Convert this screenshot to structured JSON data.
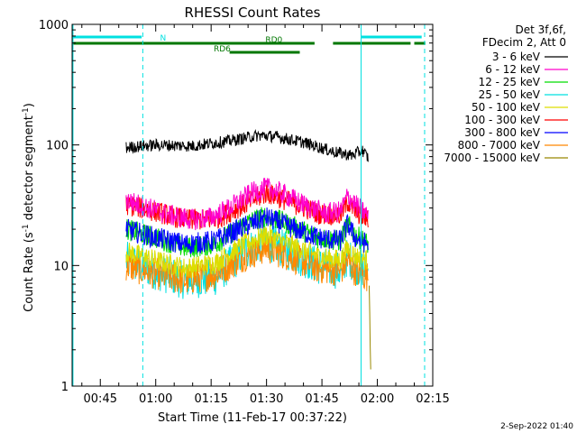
{
  "chart_data": {
    "type": "line",
    "title": "RHESSI Count Rates",
    "xlabel": "Start Time (11-Feb-17 00:37:22)",
    "ylabel_main": "Count Rate (s",
    "ylabel_sup1": "-1",
    "ylabel_mid": " detector segment",
    "ylabel_sup2": "-1",
    "ylabel_end": ")",
    "y_scale": "log",
    "ylim": [
      1,
      1000
    ],
    "xlim_minutes": [
      37.37,
      135.0
    ],
    "x_ticks": [
      {
        "minute": 45,
        "label": "00:45"
      },
      {
        "minute": 60,
        "label": "01:00"
      },
      {
        "minute": 75,
        "label": "01:15"
      },
      {
        "minute": 90,
        "label": "01:30"
      },
      {
        "minute": 105,
        "label": "01:45"
      },
      {
        "minute": 120,
        "label": "02:00"
      },
      {
        "minute": 135,
        "label": "02:15"
      }
    ],
    "y_ticks": [
      {
        "value": 1,
        "label": "1"
      },
      {
        "value": 10,
        "label": "10"
      },
      {
        "value": 100,
        "label": "100"
      },
      {
        "value": 1000,
        "label": "1000"
      }
    ],
    "legend_header": [
      "Det 3f,6f,",
      "FDecim 2, Att 0"
    ],
    "legend_position": "right",
    "series": [
      {
        "name": "3 - 6 keV",
        "color": "#000000",
        "x": [
          52,
          60,
          70,
          80,
          88,
          92,
          100,
          108,
          113,
          116,
          117.5
        ],
        "y": [
          95,
          100,
          98,
          108,
          120,
          118,
          105,
          88,
          82,
          90,
          78
        ]
      },
      {
        "name": "6 - 12 keV",
        "color": "#ff00cc",
        "x": [
          52,
          58,
          64,
          70,
          75,
          80,
          86,
          90,
          94,
          100,
          106,
          110,
          112,
          114,
          117.5
        ],
        "y": [
          35,
          30,
          26,
          24,
          25,
          30,
          40,
          44,
          40,
          32,
          27,
          28,
          38,
          32,
          26
        ]
      },
      {
        "name": "12 - 25 keV",
        "color": "#00dd00",
        "x": [
          52,
          60,
          68,
          76,
          84,
          90,
          96,
          104,
          110,
          112,
          114,
          117.5
        ],
        "y": [
          20,
          17,
          14,
          15,
          22,
          26,
          22,
          17,
          16,
          22,
          18,
          15
        ]
      },
      {
        "name": "25 - 50 keV",
        "color": "#00e0e0",
        "x": [
          52,
          60,
          68,
          76,
          84,
          90,
          96,
          104,
          110,
          112,
          114,
          117.5
        ],
        "y": [
          11,
          9,
          7.5,
          8,
          13,
          16,
          13,
          10,
          9,
          12,
          10,
          9
        ]
      },
      {
        "name": "50 - 100 keV",
        "color": "#dddd00",
        "x": [
          52,
          60,
          68,
          76,
          84,
          90,
          96,
          104,
          110,
          112,
          114,
          117.5
        ],
        "y": [
          13,
          11,
          9.5,
          10.5,
          15,
          18,
          15,
          12,
          11,
          14,
          12,
          11
        ]
      },
      {
        "name": "100 - 300 keV",
        "color": "#ff0000",
        "x": [
          52,
          60,
          68,
          76,
          84,
          90,
          96,
          104,
          110,
          112,
          114,
          117.5
        ],
        "y": [
          32,
          28,
          24,
          24,
          32,
          40,
          34,
          27,
          26,
          34,
          28,
          24
        ]
      },
      {
        "name": "300 - 800 keV",
        "color": "#0000ff",
        "x": [
          52,
          60,
          68,
          76,
          84,
          90,
          96,
          104,
          110,
          112,
          114,
          117.5
        ],
        "y": [
          20,
          17,
          15,
          16,
          21,
          25,
          21,
          17,
          16,
          22,
          17,
          15
        ]
      },
      {
        "name": "800 - 7000 keV",
        "color": "#ff8800",
        "x": [
          52,
          60,
          68,
          76,
          84,
          90,
          96,
          104,
          110,
          112,
          114,
          117.5
        ],
        "y": [
          10,
          8.5,
          7.5,
          8.5,
          12,
          14,
          12,
          9.5,
          9,
          11,
          9,
          8
        ]
      },
      {
        "name": "7000 - 15000 keV",
        "color": "#998800",
        "x": [
          117.8,
          118.2
        ],
        "y": [
          6,
          1.6
        ]
      }
    ],
    "attenuator_bars": [
      {
        "label": "N",
        "color": "#00e0e0",
        "label_minute": 62,
        "segments": [
          [
            37.4,
            56.2
          ],
          [
            115.5,
            132
          ]
        ]
      },
      {
        "label": "RD0",
        "color": "#007700",
        "label_minute": 92,
        "segments": [
          [
            37.4,
            103
          ],
          [
            108,
            129
          ],
          [
            130,
            133
          ]
        ]
      },
      {
        "label": "RD6",
        "color": "#007700",
        "label_minute": 78,
        "segments": [
          [
            80,
            99
          ]
        ]
      }
    ],
    "vertical_lines": [
      {
        "minute": 37.6,
        "style": "solid",
        "color": "#00e0e0"
      },
      {
        "minute": 56.5,
        "style": "dashed",
        "color": "#00e0e0"
      },
      {
        "minute": 115.6,
        "style": "solid",
        "color": "#00e0e0"
      },
      {
        "minute": 132.8,
        "style": "dashed",
        "color": "#00e0e0"
      }
    ]
  },
  "timestamp": "2-Sep-2022 01:40"
}
